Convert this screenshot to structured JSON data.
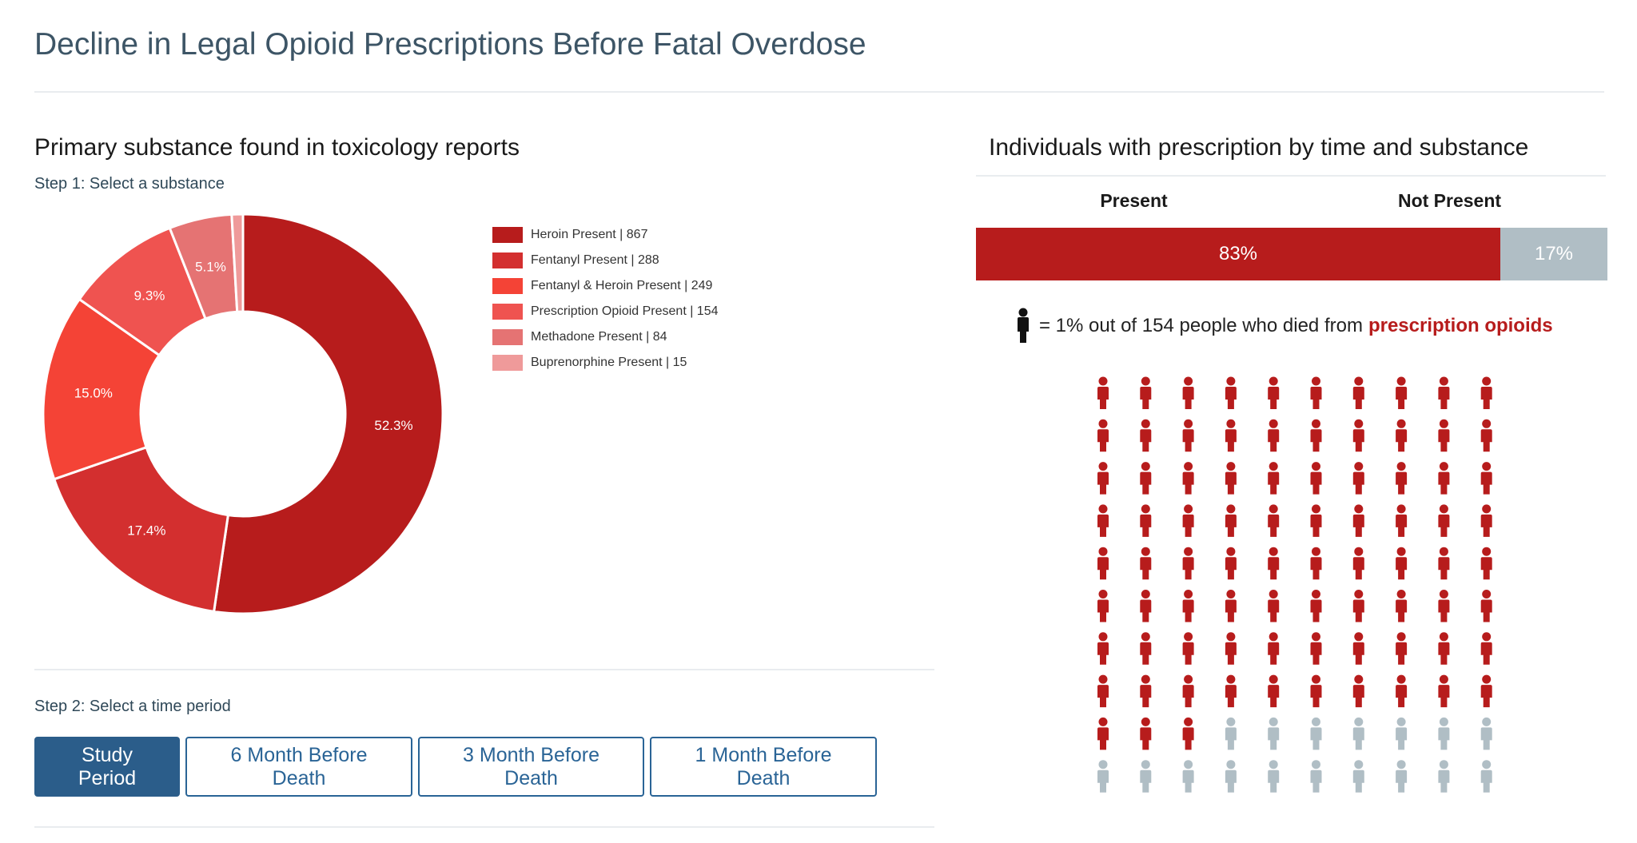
{
  "header": {
    "title": "Decline in Legal Opioid Prescriptions Before Fatal Overdose"
  },
  "left_panel": {
    "title": "Primary substance found in toxicology reports",
    "step1_label": "Step 1: Select a substance",
    "step2_label": "Step 2: Select a time period",
    "time_buttons": [
      {
        "label": "Study Period",
        "active": true
      },
      {
        "label": "6 Month Before Death",
        "active": false
      },
      {
        "label": "3 Month Before Death",
        "active": false
      },
      {
        "label": "1 Month Before Death",
        "active": false
      }
    ]
  },
  "right_panel": {
    "title": "Individuals with prescription by time and substance",
    "present_header": "Present",
    "not_present_header": "Not Present",
    "present_pct_label": "83%",
    "not_present_pct_label": "17%",
    "present_fraction": 0.83,
    "caption_prefix": "= 1% out of 154 people who died from",
    "caption_emphasis": "prescription opioids",
    "icon_name": "person-icon",
    "colors": {
      "present": "#b71c1c",
      "not_present": "#b0bec5"
    }
  },
  "chart_data": [
    {
      "type": "pie",
      "subtype": "donut",
      "series": [
        {
          "name": "Heroin Present",
          "legend_label": "Heroin Present | 867",
          "value": 867,
          "pct_label": "52.3%",
          "color": "#b71c1c"
        },
        {
          "name": "Fentanyl Present",
          "legend_label": "Fentanyl Present | 288",
          "value": 288,
          "pct_label": "17.4%",
          "color": "#d32f2f"
        },
        {
          "name": "Fentanyl & Heroin Present",
          "legend_label": "Fentanyl & Heroin Present | 249",
          "value": 249,
          "pct_label": "15.0%",
          "color": "#f44336"
        },
        {
          "name": "Prescription Opioid Present",
          "legend_label": "Prescription Opioid Present | 154",
          "value": 154,
          "pct_label": "9.3%",
          "color": "#ef5350"
        },
        {
          "name": "Methadone Present",
          "legend_label": "Methadone Present | 84",
          "value": 84,
          "pct_label": "5.1%",
          "color": "#e57373"
        },
        {
          "name": "Buprenorphine Present",
          "legend_label": "Buprenorphine Present | 15",
          "value": 15,
          "pct_label": "",
          "color": "#ef9a9a"
        }
      ],
      "legend_position": "right"
    },
    {
      "type": "bar",
      "subtype": "stacked-100",
      "categories": [
        "Present",
        "Not Present"
      ],
      "values": [
        83,
        17
      ],
      "labels": [
        "83%",
        "17%"
      ]
    },
    {
      "type": "pictogram",
      "unit": "1% out of 154 people",
      "columns": 10,
      "rows": 10,
      "present_count": 83,
      "not_present_count": 17
    }
  ]
}
